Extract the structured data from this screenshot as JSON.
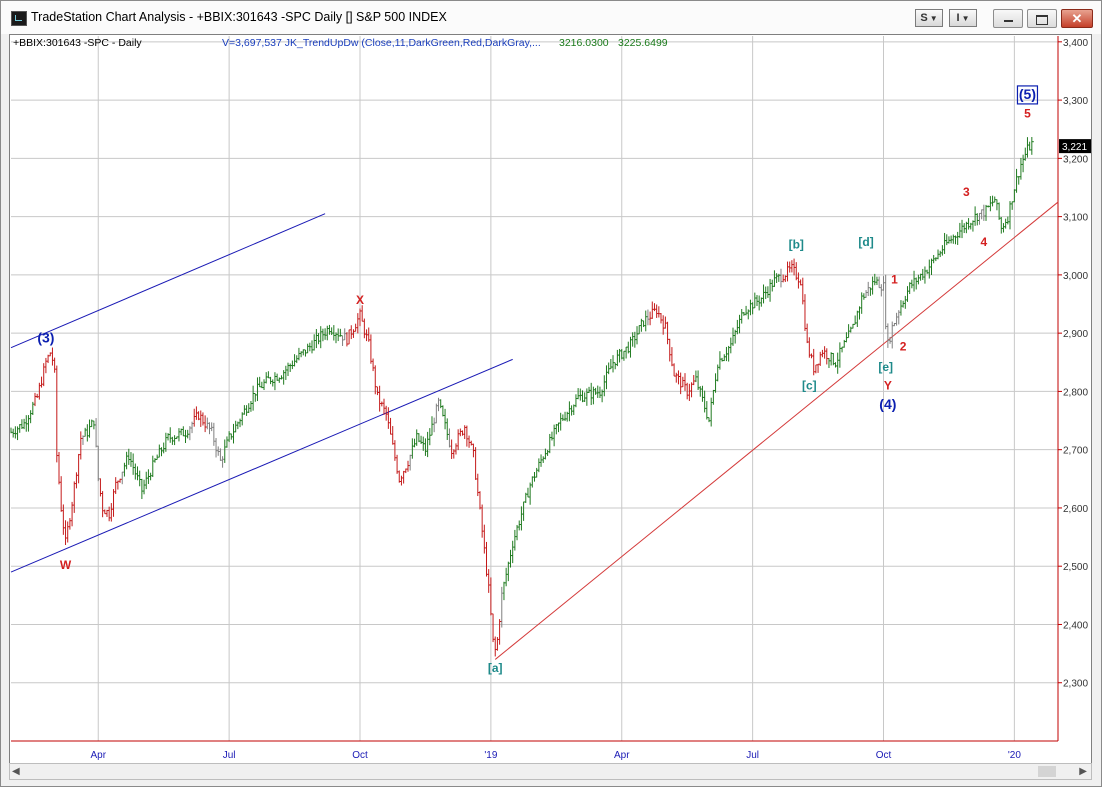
{
  "window": {
    "title": "TradeStation Chart Analysis - +BBIX:301643 -SPC Daily [] S&P 500 INDEX",
    "toolbar": {
      "s_label": "S",
      "i_label": "I"
    },
    "controls": {
      "minimize": "",
      "maximize": "",
      "close": "✕"
    }
  },
  "status": {
    "symbol": "+BBIX:301643 -SPC - Daily",
    "indicator": "V=3,697,537  JK_TrendUpDw (Close,11,DarkGreen,Red,DarkGray,...",
    "value1": "3216.0300",
    "value2": "3225.6499"
  },
  "colors": {
    "up": "#1f7a1f",
    "down": "#c41a1a",
    "neutral": "#7f7f7f",
    "channel": "#1a1ab5",
    "trendline": "#d43a3a",
    "axis": "#c00000",
    "wave_primary": "#0b1fb0",
    "wave_red": "#d42020",
    "wave_teal": "#1e8a8a"
  },
  "chart_data": {
    "type": "line",
    "price_axis": {
      "ticks": [
        "3,400",
        "3,300",
        "3,200",
        "3,100",
        "3,000",
        "2,900",
        "2,800",
        "2,700",
        "2,600",
        "2,500",
        "2,400",
        "2,300"
      ],
      "tick_values": [
        3400,
        3300,
        3200,
        3100,
        3000,
        2900,
        2800,
        2700,
        2600,
        2500,
        2400,
        2300
      ],
      "min": 2200,
      "max": 3410,
      "last_price_label": "3,221",
      "last_price": 3221
    },
    "time_axis": {
      "labels": [
        "Apr",
        "Jul",
        "Oct",
        "'19",
        "Apr",
        "Jul",
        "Oct",
        "'20"
      ],
      "values": [
        2,
        5,
        8,
        11,
        14,
        17,
        20,
        23
      ],
      "min": 0,
      "max": 24
    },
    "price_path": [
      [
        0.0,
        2730
      ],
      [
        0.3,
        2745
      ],
      [
        0.6,
        2790
      ],
      [
        0.8,
        2850
      ],
      [
        0.92,
        2870
      ],
      [
        1.0,
        2830
      ],
      [
        1.05,
        2690
      ],
      [
        1.15,
        2600
      ],
      [
        1.25,
        2540
      ],
      [
        1.4,
        2610
      ],
      [
        1.6,
        2720
      ],
      [
        1.75,
        2730
      ],
      [
        1.9,
        2750
      ],
      [
        2.0,
        2650
      ],
      [
        2.1,
        2600
      ],
      [
        2.25,
        2590
      ],
      [
        2.4,
        2640
      ],
      [
        2.7,
        2690
      ],
      [
        3.0,
        2630
      ],
      [
        3.3,
        2680
      ],
      [
        3.6,
        2720
      ],
      [
        4.0,
        2730
      ],
      [
        4.3,
        2760
      ],
      [
        4.6,
        2730
      ],
      [
        4.8,
        2680
      ],
      [
        5.0,
        2720
      ],
      [
        5.3,
        2760
      ],
      [
        5.6,
        2800
      ],
      [
        5.9,
        2820
      ],
      [
        6.2,
        2830
      ],
      [
        6.6,
        2860
      ],
      [
        6.9,
        2880
      ],
      [
        7.3,
        2910
      ],
      [
        7.7,
        2890
      ],
      [
        8.0,
        2930
      ],
      [
        8.2,
        2880
      ],
      [
        8.4,
        2790
      ],
      [
        8.6,
        2760
      ],
      [
        8.9,
        2650
      ],
      [
        9.1,
        2680
      ],
      [
        9.3,
        2720
      ],
      [
        9.5,
        2700
      ],
      [
        9.8,
        2780
      ],
      [
        10.1,
        2700
      ],
      [
        10.4,
        2740
      ],
      [
        10.6,
        2690
      ],
      [
        10.8,
        2560
      ],
      [
        10.95,
        2460
      ],
      [
        11.05,
        2370
      ],
      [
        11.12,
        2350
      ],
      [
        11.25,
        2450
      ],
      [
        11.5,
        2540
      ],
      [
        11.9,
        2640
      ],
      [
        12.2,
        2690
      ],
      [
        12.6,
        2750
      ],
      [
        13.0,
        2790
      ],
      [
        13.5,
        2800
      ],
      [
        13.8,
        2850
      ],
      [
        14.2,
        2880
      ],
      [
        14.5,
        2920
      ],
      [
        14.8,
        2940
      ],
      [
        15.0,
        2910
      ],
      [
        15.2,
        2830
      ],
      [
        15.5,
        2800
      ],
      [
        15.7,
        2820
      ],
      [
        16.0,
        2750
      ],
      [
        16.2,
        2850
      ],
      [
        16.5,
        2880
      ],
      [
        16.8,
        2940
      ],
      [
        17.2,
        2960
      ],
      [
        17.5,
        2990
      ],
      [
        17.9,
        3010
      ],
      [
        18.1,
        2990
      ],
      [
        18.25,
        2880
      ],
      [
        18.4,
        2840
      ],
      [
        18.6,
        2870
      ],
      [
        18.9,
        2850
      ],
      [
        19.1,
        2880
      ],
      [
        19.3,
        2910
      ],
      [
        19.5,
        2960
      ],
      [
        19.8,
        2990
      ],
      [
        20.0,
        2980
      ],
      [
        20.05,
        2920
      ],
      [
        20.1,
        2880
      ],
      [
        20.2,
        2910
      ],
      [
        20.35,
        2940
      ],
      [
        20.6,
        2980
      ],
      [
        21.0,
        3010
      ],
      [
        21.4,
        3050
      ],
      [
        21.8,
        3080
      ],
      [
        22.1,
        3100
      ],
      [
        22.35,
        3110
      ],
      [
        22.55,
        3130
      ],
      [
        22.7,
        3080
      ],
      [
        22.85,
        3100
      ],
      [
        23.0,
        3150
      ],
      [
        23.15,
        3190
      ],
      [
        23.3,
        3215
      ],
      [
        23.4,
        3225
      ]
    ],
    "channel": {
      "upper": [
        [
          0,
          2875
        ],
        [
          7.2,
          3105
        ]
      ],
      "lower": [
        [
          0,
          2490
        ],
        [
          11.5,
          2855
        ]
      ]
    },
    "trendline": [
      [
        11.1,
        2340
      ],
      [
        24,
        3125
      ]
    ],
    "wave_labels": [
      {
        "text": "(3)",
        "x": 0.8,
        "y": 2884,
        "style": "primary"
      },
      {
        "text": "W",
        "x": 1.25,
        "y": 2495,
        "style": "red"
      },
      {
        "text": "X",
        "x": 8.0,
        "y": 2950,
        "style": "red"
      },
      {
        "text": "[a]",
        "x": 11.1,
        "y": 2318,
        "style": "teal"
      },
      {
        "text": "[b]",
        "x": 18.0,
        "y": 3045,
        "style": "teal"
      },
      {
        "text": "[c]",
        "x": 18.3,
        "y": 2803,
        "style": "teal"
      },
      {
        "text": "[d]",
        "x": 19.6,
        "y": 3050,
        "style": "teal"
      },
      {
        "text": "[e]",
        "x": 20.05,
        "y": 2835,
        "style": "teal"
      },
      {
        "text": "1",
        "x": 20.25,
        "y": 2985,
        "style": "red"
      },
      {
        "text": "2",
        "x": 20.45,
        "y": 2870,
        "style": "red"
      },
      {
        "text": "Y",
        "x": 20.1,
        "y": 2803,
        "style": "red"
      },
      {
        "text": "(4)",
        "x": 20.1,
        "y": 2770,
        "style": "primary"
      },
      {
        "text": "3",
        "x": 21.9,
        "y": 3135,
        "style": "red"
      },
      {
        "text": "4",
        "x": 22.3,
        "y": 3050,
        "style": "red"
      },
      {
        "text": "5",
        "x": 23.3,
        "y": 3270,
        "style": "red"
      },
      {
        "text": "(5)",
        "x": 23.3,
        "y": 3302,
        "style": "boxed"
      }
    ]
  },
  "scrollbar": {
    "left_arrow": "◀",
    "right_arrow": "▶"
  }
}
